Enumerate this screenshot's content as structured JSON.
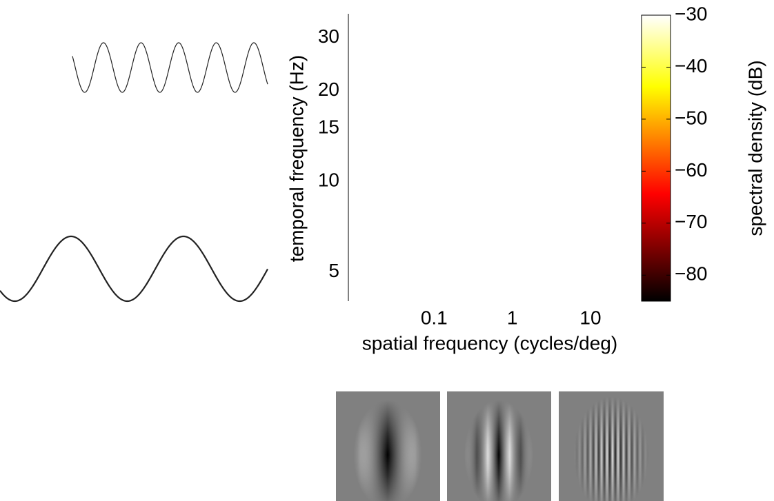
{
  "chart_data": {
    "type": "spectrum",
    "xlabel": "spatial frequency (cycles/deg)",
    "ylabel": "temporal frequency (Hz)",
    "xscale": "log",
    "yscale": "log",
    "xlim": [
      0.008,
      45
    ],
    "xticks": [
      0.1,
      1,
      10
    ],
    "ylim": [
      4,
      36
    ],
    "yticks": [
      5,
      10,
      15,
      20,
      30
    ],
    "colormap": "hot",
    "colorbar_label": "spectral density (dB)",
    "clim": [
      -85,
      -30
    ],
    "cticks": [
      {
        "value": -30,
        "label": "−30"
      },
      {
        "value": -40,
        "label": "−40"
      },
      {
        "value": -50,
        "label": "−50"
      },
      {
        "value": -60,
        "label": "−60"
      },
      {
        "value": -70,
        "label": "−70"
      },
      {
        "value": -80,
        "label": "−80"
      }
    ]
  }
}
